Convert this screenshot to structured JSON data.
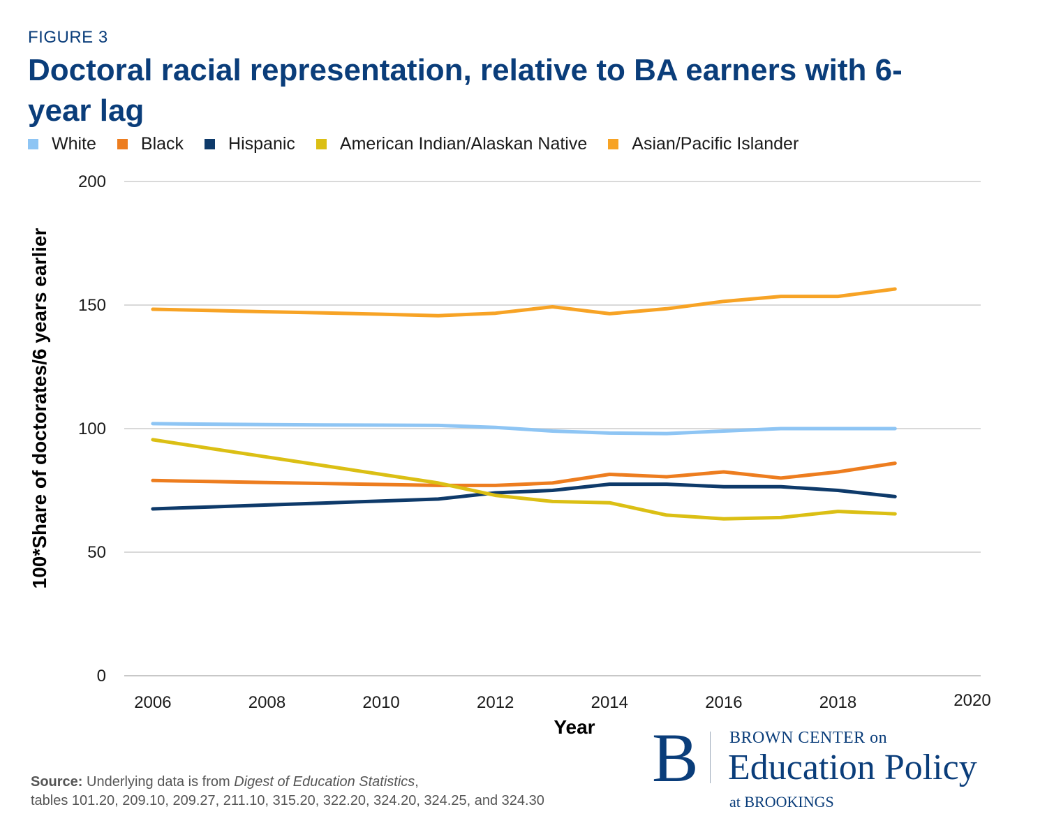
{
  "header": {
    "figure_label": "FIGURE 3",
    "title": "Doctoral racial representation, relative to BA earners with 6-year lag"
  },
  "chart_data": {
    "type": "line",
    "title": "Doctoral racial representation, relative to BA earners with 6-year lag",
    "xlabel": "Year",
    "ylabel": "100*Share of doctorates/6 years earlier",
    "x": [
      2006,
      2007,
      2008,
      2009,
      2010,
      2011,
      2012,
      2013,
      2014,
      2015,
      2016,
      2017,
      2018,
      2019
    ],
    "xlim": [
      2005.5,
      2020.5
    ],
    "ylim": [
      0,
      200
    ],
    "x_ticks": [
      2006,
      2008,
      2010,
      2012,
      2014,
      2016,
      2018,
      2020
    ],
    "y_ticks": [
      0,
      50,
      100,
      150,
      200
    ],
    "grid": true,
    "legend_position": "top-left",
    "series": [
      {
        "name": "White",
        "color": "#8ec5f4",
        "values": [
          102,
          101.8,
          101.6,
          101.5,
          101.4,
          101.3,
          100.5,
          99,
          98.2,
          98,
          99,
          100,
          100,
          100
        ]
      },
      {
        "name": "Black",
        "color": "#ed7d1f",
        "values": [
          79,
          78.6,
          78.2,
          77.8,
          77.4,
          77,
          77,
          78,
          81.5,
          80.5,
          82.5,
          80,
          82.5,
          86
        ]
      },
      {
        "name": "Hispanic",
        "color": "#0e3a6a",
        "values": [
          67.5,
          68.3,
          69.1,
          69.9,
          70.7,
          71.5,
          74,
          75,
          77.5,
          77.5,
          76.5,
          76.5,
          75,
          72.5
        ]
      },
      {
        "name": "American Indian/Alaskan Native",
        "color": "#dbbf14",
        "values": [
          95.5,
          92,
          88.5,
          85,
          81.5,
          78,
          73,
          70.5,
          70,
          65,
          63.5,
          64,
          66.5,
          65.5
        ]
      },
      {
        "name": "Asian/Pacific Islander",
        "color": "#f7a325",
        "values": [
          148.3,
          147.8,
          147.3,
          146.8,
          146.3,
          145.7,
          146.7,
          149.3,
          146.5,
          148.5,
          151.5,
          153.5,
          153.5,
          156.5
        ]
      }
    ]
  },
  "source": {
    "label": "Source:",
    "text_before": "Underlying data is from",
    "publication": "Digest of Education Statistics",
    "text_after": ",",
    "tables": "tables 101.20, 209.10, 209.27, 211.10, 315.20, 322.20, 324.20, 324.25, and 324.30"
  },
  "logo": {
    "letter": "B",
    "line1": "BROWN CENTER on",
    "line2": "Education Policy",
    "line3": "at BROOKINGS"
  }
}
